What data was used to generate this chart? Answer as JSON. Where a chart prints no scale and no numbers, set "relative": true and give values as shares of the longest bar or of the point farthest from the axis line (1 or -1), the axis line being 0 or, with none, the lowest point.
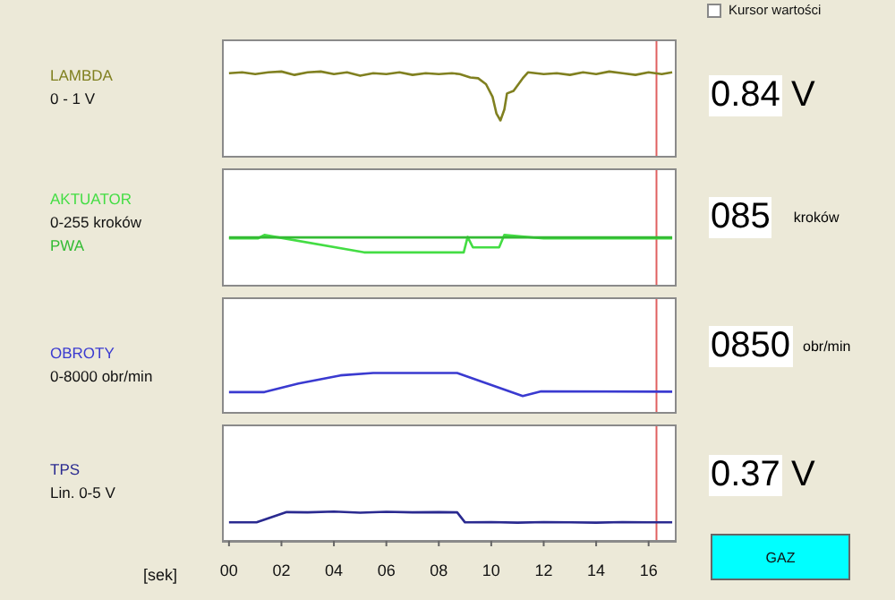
{
  "chart_data": [
    {
      "type": "line",
      "relative": true,
      "xlim": [
        -0.2,
        17.0
      ],
      "tick_labels": false,
      "ylabel": "0 - 1 V",
      "annotations": [
        "0.84 V",
        "Kursor wartości"
      ],
      "ref_lines": [
        {
          "axis": "x",
          "value": 16.3,
          "color": "#e06060"
        }
      ],
      "series": [
        {
          "name": "LAMBDA",
          "color": "#808020",
          "x": [
            0,
            0.5,
            1,
            1.5,
            2,
            2.5,
            3,
            3.5,
            4,
            4.5,
            5,
            5.5,
            6,
            6.5,
            7,
            7.5,
            8,
            8.5,
            8.8,
            9.2,
            9.5,
            9.8,
            10.05,
            10.2,
            10.35,
            10.5,
            10.6,
            10.85,
            11.2,
            11.4,
            12,
            12.5,
            13,
            13.5,
            14,
            14.5,
            15,
            15.5,
            16,
            16.5,
            16.9
          ],
          "values": [
            0.98,
            0.99,
            0.97,
            0.99,
            1.0,
            0.96,
            0.99,
            1.0,
            0.97,
            0.99,
            0.95,
            0.98,
            0.97,
            0.99,
            0.96,
            0.98,
            0.97,
            0.98,
            0.97,
            0.93,
            0.92,
            0.85,
            0.7,
            0.5,
            0.42,
            0.55,
            0.74,
            0.77,
            0.92,
            0.99,
            0.97,
            0.98,
            0.96,
            0.99,
            0.97,
            1.0,
            0.98,
            0.96,
            0.99,
            0.97,
            0.99
          ]
        }
      ]
    },
    {
      "type": "line",
      "relative": true,
      "xlim": [
        -0.2,
        17.0
      ],
      "tick_labels": false,
      "ylabel": "0-255 kroków",
      "annotations": [
        "085 kroków"
      ],
      "ref_lines": [
        {
          "axis": "x",
          "value": 16.3,
          "color": "#e06060"
        }
      ],
      "series": [
        {
          "name": "AKTUATOR",
          "color": "#44dd44",
          "x": [
            0,
            1.1,
            1.35,
            5.15,
            8.95,
            9.1,
            9.3,
            10.3,
            10.5,
            12,
            16.9
          ],
          "values": [
            0.93,
            0.93,
            1.0,
            0.65,
            0.65,
            0.96,
            0.75,
            0.75,
            1.0,
            0.93,
            0.93
          ]
        },
        {
          "name": "PWA",
          "color": "#33bb33",
          "x": [
            0,
            16.9
          ],
          "values": [
            0.95,
            0.95
          ]
        }
      ]
    },
    {
      "type": "line",
      "relative": true,
      "xlim": [
        -0.2,
        17.0
      ],
      "tick_labels": false,
      "ylabel": "0-8000 obr/min",
      "annotations": [
        "0850 obr/min"
      ],
      "ref_lines": [
        {
          "axis": "x",
          "value": 16.3,
          "color": "#e06060"
        }
      ],
      "series": [
        {
          "name": "OBROTY",
          "color": "#3a3ad0",
          "x": [
            0,
            1.35,
            2.65,
            4.25,
            5.5,
            8.7,
            11.2,
            11.9,
            16.9
          ],
          "values": [
            0.51,
            0.51,
            0.73,
            0.94,
            1.0,
            1.0,
            0.41,
            0.53,
            0.52
          ]
        }
      ]
    },
    {
      "type": "line",
      "relative": true,
      "xlim": [
        -0.2,
        17.0
      ],
      "tick_labels": "x",
      "xlabel": "[sek]",
      "xticks": [
        {
          "value": 0,
          "label": "00"
        },
        {
          "value": 2,
          "label": "02"
        },
        {
          "value": 4,
          "label": "04"
        },
        {
          "value": 6,
          "label": "06"
        },
        {
          "value": 8,
          "label": "08"
        },
        10,
        12,
        14,
        16
      ],
      "ylabel": "Lin. 0-5 V",
      "annotations": [
        "0.37 V",
        "GAZ"
      ],
      "ref_lines": [
        {
          "axis": "x",
          "value": 16.3,
          "color": "#e06060"
        }
      ],
      "series": [
        {
          "name": "TPS",
          "color": "#2a2a90",
          "x": [
            0,
            1.05,
            1.6,
            2.2,
            3,
            4,
            5,
            6,
            7,
            8,
            8.7,
            9.0,
            10,
            11,
            12,
            13,
            14,
            15,
            16,
            16.9
          ],
          "values": [
            0.63,
            0.63,
            0.8,
            0.98,
            0.97,
            1.0,
            0.96,
            0.99,
            0.97,
            0.98,
            0.97,
            0.63,
            0.64,
            0.62,
            0.64,
            0.63,
            0.62,
            0.64,
            0.63,
            0.63
          ]
        }
      ]
    }
  ]
}
